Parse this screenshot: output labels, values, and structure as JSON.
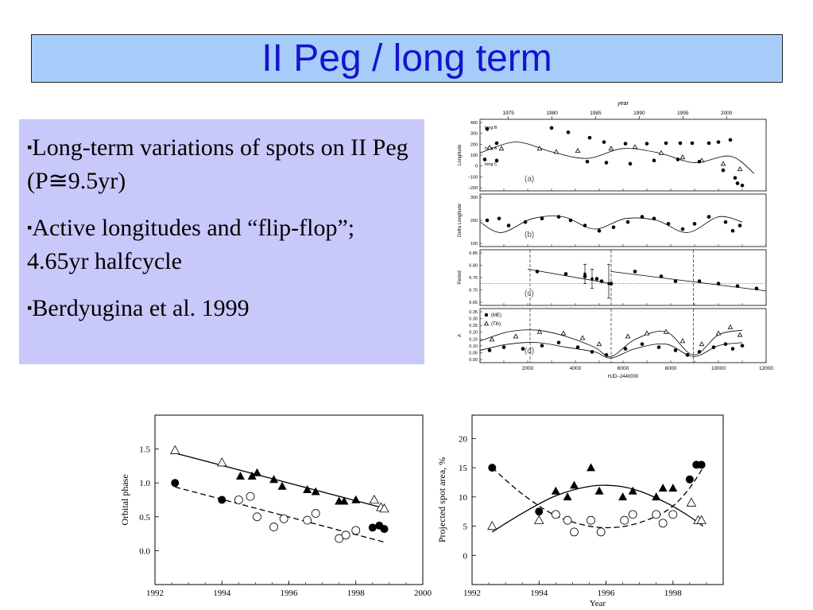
{
  "slide": {
    "title": "II Peg / long term",
    "bullet_marker": "▪",
    "bullets": [
      "Long-term variations of spots on II Peg (P≅9.5yr)",
      "Active longitudes and “flip-flop”; 4.65yr halfcycle",
      "Berdyugina et al. 1999"
    ]
  },
  "chart_data": [
    {
      "type": "scatter",
      "title": "",
      "top_axis_label": "year",
      "top_ticks": [
        "1975",
        "1980",
        "1985",
        "1990",
        "1995",
        "2000"
      ],
      "xlabel": "HJD−2440000",
      "x_ticks": [
        "2000",
        "4000",
        "6000",
        "8000",
        "10000",
        "12000"
      ],
      "xlim": [
        0,
        12000
      ],
      "panels": [
        {
          "label": "(a)",
          "ylabel": "Longitude",
          "ylim": [
            -240,
            420
          ],
          "y_ticks": [
            "400",
            "300",
            "200",
            "100",
            "0",
            "−100",
            "−200"
          ],
          "row_labels": [
            "long B",
            "long A",
            "long C"
          ],
          "series": [
            {
              "marker": "filled-circle",
              "x": [
                300,
                700,
                3000,
                3700,
                4600,
                5200,
                6100,
                7000,
                7800,
                8400,
                8900,
                9600,
                10000,
                10500,
                10800,
                11000
              ],
              "y": [
                330,
                200,
                340,
                300,
                250,
                210,
                195,
                195,
                200,
                200,
                200,
                200,
                210,
                230,
                -170,
                -190
              ]
            },
            {
              "marker": "open-triangle",
              "x": [
                400,
                900,
                2500,
                3200,
                4100,
                5500,
                6500,
                7600,
                8500,
                9300,
                10200,
                10900
              ],
              "y": [
                160,
                150,
                150,
                120,
                130,
                150,
                165,
                110,
                70,
                40,
                10,
                -40
              ]
            },
            {
              "marker": "filled-circle",
              "x": [
                200,
                700,
                4500,
                5300,
                6300,
                7300,
                8300,
                9200,
                10200,
                10700
              ],
              "y": [
                50,
                40,
                30,
                20,
                10,
                40,
                50,
                30,
                -50,
                -120
              ]
            }
          ],
          "fit": {
            "x": [
              0,
              1500,
              3000,
              4500,
              6000,
              7500,
              9000,
              10500,
              11500
            ],
            "y": [
              110,
              210,
              120,
              60,
              150,
              110,
              20,
              80,
              -80
            ]
          }
        },
        {
          "label": "(b)",
          "ylabel": "Delta Longitude",
          "ylim": [
            0,
            300
          ],
          "y_ticks": [
            "300",
            "200",
            "100"
          ],
          "series": [
            {
              "marker": "filled-circle",
              "x": [
                300,
                800,
                1200,
                1900,
                2600,
                3300,
                3800,
                4400,
                5000,
                5600,
                6200,
                6800,
                7300,
                7900,
                8500,
                9000,
                9600,
                10300,
                10600,
                10900
              ],
              "y": [
                150,
                160,
                120,
                140,
                160,
                170,
                150,
                120,
                90,
                110,
                140,
                170,
                160,
                130,
                100,
                130,
                170,
                140,
                90,
                120
              ]
            }
          ],
          "fit": {
            "x": [
              0,
              900,
              2200,
              3500,
              4800,
              6100,
              7400,
              8700,
              10000,
              11000
            ],
            "y": [
              140,
              80,
              160,
              170,
              100,
              160,
              150,
              80,
              170,
              140
            ]
          }
        },
        {
          "label": "(c)",
          "ylabel": "Period",
          "ylim": [
            6.63,
            6.86
          ],
          "y_ticks": [
            "6.85",
            "6.80",
            "6.75",
            "6.70",
            "6.65"
          ],
          "reference_line": 6.72,
          "series": [
            {
              "marker": "filled-circle",
              "x": [
                2400,
                3600,
                4400,
                4900,
                5100,
                5500,
                6500,
                7600,
                8200,
                9200,
                10000,
                10800,
                11600
              ],
              "y": [
                6.77,
                6.76,
                6.75,
                6.74,
                6.73,
                6.72,
                6.77,
                6.75,
                6.73,
                6.73,
                6.72,
                6.71,
                6.7
              ]
            }
          ],
          "errors": [
            {
              "x": 4400,
              "y": 6.76,
              "lo": 6.72,
              "hi": 6.8
            },
            {
              "x": 4700,
              "y": 6.74,
              "lo": 6.7,
              "hi": 6.78
            },
            {
              "x": 5400,
              "y": 6.72,
              "lo": 6.66,
              "hi": 6.8
            }
          ],
          "fit_segments": [
            {
              "x": [
                2000,
                5500
              ],
              "y": [
                6.78,
                6.72
              ]
            },
            {
              "x": [
                5500,
                12000
              ],
              "y": [
                6.77,
                6.69
              ]
            }
          ],
          "dashed_x": [
            2100,
            5500,
            8950
          ]
        },
        {
          "label": "(d)",
          "ylabel": "A",
          "ylim": [
            0,
            0.35
          ],
          "y_ticks": [
            "0.35",
            "0.30",
            "0.25",
            "0.20",
            "0.15",
            "0.10",
            "0.05",
            "0.00"
          ],
          "legend": [
            "(ME)",
            "(Tih)"
          ],
          "series": [
            {
              "name": "(ME)",
              "marker": "filled-circle",
              "x": [
                400,
                1000,
                1800,
                2600,
                3300,
                4100,
                4700,
                5300,
                6100,
                6800,
                7500,
                8200,
                8700,
                9200,
                9800,
                10300,
                10600,
                11000
              ],
              "y": [
                0.08,
                0.1,
                0.09,
                0.11,
                0.13,
                0.1,
                0.07,
                0.05,
                0.09,
                0.12,
                0.1,
                0.08,
                0.05,
                0.07,
                0.1,
                0.12,
                0.09,
                0.11
              ]
            },
            {
              "name": "(Tih)",
              "marker": "open-triangle",
              "x": [
                500,
                1500,
                2500,
                3500,
                4300,
                5000,
                6200,
                7000,
                7800,
                8500,
                9300,
                10000,
                10500,
                10900
              ],
              "y": [
                0.15,
                0.17,
                0.2,
                0.19,
                0.16,
                0.12,
                0.17,
                0.19,
                0.2,
                0.14,
                0.12,
                0.19,
                0.23,
                0.18
              ]
            }
          ],
          "fit_upper": {
            "x": [
              0,
              1200,
              2400,
              3600,
              4800,
              5500,
              6500,
              7800,
              8950,
              10000,
              11000
            ],
            "y": [
              0.14,
              0.2,
              0.21,
              0.17,
              0.1,
              0.04,
              0.15,
              0.2,
              0.05,
              0.18,
              0.21
            ]
          },
          "fit_lower": {
            "x": [
              0,
              1200,
              2400,
              3600,
              4800,
              5500,
              6500,
              7800,
              8950,
              10000,
              11000
            ],
            "y": [
              0.08,
              0.12,
              0.13,
              0.1,
              0.07,
              0.03,
              0.09,
              0.12,
              0.04,
              0.11,
              0.13
            ]
          },
          "dashed_x": [
            2100,
            5500,
            8950
          ]
        }
      ]
    },
    {
      "type": "scatter",
      "title": "",
      "xlabel": "",
      "ylabel": "Orbital phase",
      "xlim": [
        1992,
        2000
      ],
      "ylim": [
        -0.5,
        2.0
      ],
      "x_ticks": [
        "1992",
        "1994",
        "1996",
        "1998",
        "2000"
      ],
      "y_ticks": [
        "1.5",
        "1.0",
        "0.5",
        "0.0"
      ],
      "series": [
        {
          "marker": "open-triangle",
          "x": [
            1992.6,
            1994.0,
            1998.55,
            1998.75,
            1998.85
          ],
          "y": [
            1.48,
            1.3,
            0.75,
            0.64,
            0.62
          ]
        },
        {
          "marker": "filled-triangle",
          "x": [
            1994.55,
            1994.9,
            1995.05,
            1995.55,
            1995.8,
            1996.55,
            1996.8,
            1997.5,
            1997.65,
            1998.0
          ],
          "y": [
            1.1,
            1.1,
            1.15,
            1.05,
            0.95,
            0.9,
            0.87,
            0.73,
            0.73,
            0.75
          ]
        },
        {
          "marker": "filled-circle",
          "x": [
            1992.6,
            1994.0,
            1998.5,
            1998.7,
            1998.85
          ],
          "y": [
            1.0,
            0.75,
            0.34,
            0.37,
            0.32
          ]
        },
        {
          "marker": "open-circle",
          "x": [
            1994.5,
            1994.85,
            1995.05,
            1995.55,
            1995.85,
            1996.55,
            1996.8,
            1997.5,
            1997.7,
            1998.0
          ],
          "y": [
            0.75,
            0.8,
            0.5,
            0.35,
            0.47,
            0.45,
            0.55,
            0.18,
            0.23,
            0.3
          ]
        }
      ],
      "fit_solid": {
        "x": [
          1992.6,
          1998.9
        ],
        "y": [
          1.44,
          0.62
        ]
      },
      "fit_dashed": {
        "x": [
          1992.6,
          1998.9
        ],
        "y": [
          0.94,
          0.12
        ]
      }
    },
    {
      "type": "scatter",
      "title": "",
      "xlabel": "Year",
      "ylabel": "Projected spot area, %",
      "xlim": [
        1992,
        1999.5
      ],
      "ylim": [
        -5,
        24
      ],
      "x_ticks": [
        "1992",
        "1994",
        "1996",
        "1998"
      ],
      "y_ticks": [
        "20",
        "15",
        "10",
        "5",
        "0"
      ],
      "series": [
        {
          "marker": "open-triangle",
          "x": [
            1992.6,
            1994.0,
            1998.55,
            1998.75,
            1998.85
          ],
          "y": [
            5,
            6,
            9,
            6,
            6
          ]
        },
        {
          "marker": "filled-triangle",
          "x": [
            1994.5,
            1994.85,
            1995.05,
            1995.55,
            1995.8,
            1996.5,
            1996.8,
            1997.5,
            1997.7,
            1998.0
          ],
          "y": [
            11,
            10,
            12,
            15,
            11,
            10,
            11,
            10,
            11.5,
            11.5
          ]
        },
        {
          "marker": "filled-circle",
          "x": [
            1992.6,
            1994.0,
            1998.5,
            1998.7,
            1998.85
          ],
          "y": [
            15,
            7.5,
            13,
            15.5,
            15.5
          ]
        },
        {
          "marker": "open-circle",
          "x": [
            1994.5,
            1994.85,
            1995.05,
            1995.55,
            1995.85,
            1996.55,
            1996.8,
            1997.5,
            1997.7,
            1998.0
          ],
          "y": [
            7,
            6,
            4,
            6,
            4,
            6,
            7,
            7,
            5.5,
            7
          ]
        }
      ],
      "fit_solid": {
        "x": [
          1992.6,
          1993.5,
          1994.5,
          1995.5,
          1996.3,
          1997,
          1997.8,
          1998.4,
          1998.9
        ],
        "y": [
          4,
          7.2,
          10.2,
          11.8,
          11.9,
          11,
          9,
          7,
          5
        ]
      },
      "fit_dashed": {
        "x": [
          1992.6,
          1993.5,
          1994.5,
          1995.5,
          1996.3,
          1997,
          1997.8,
          1998.4,
          1998.9
        ],
        "y": [
          15,
          10.5,
          6.8,
          5,
          4.8,
          5.6,
          7.6,
          10.8,
          15
        ]
      }
    }
  ]
}
